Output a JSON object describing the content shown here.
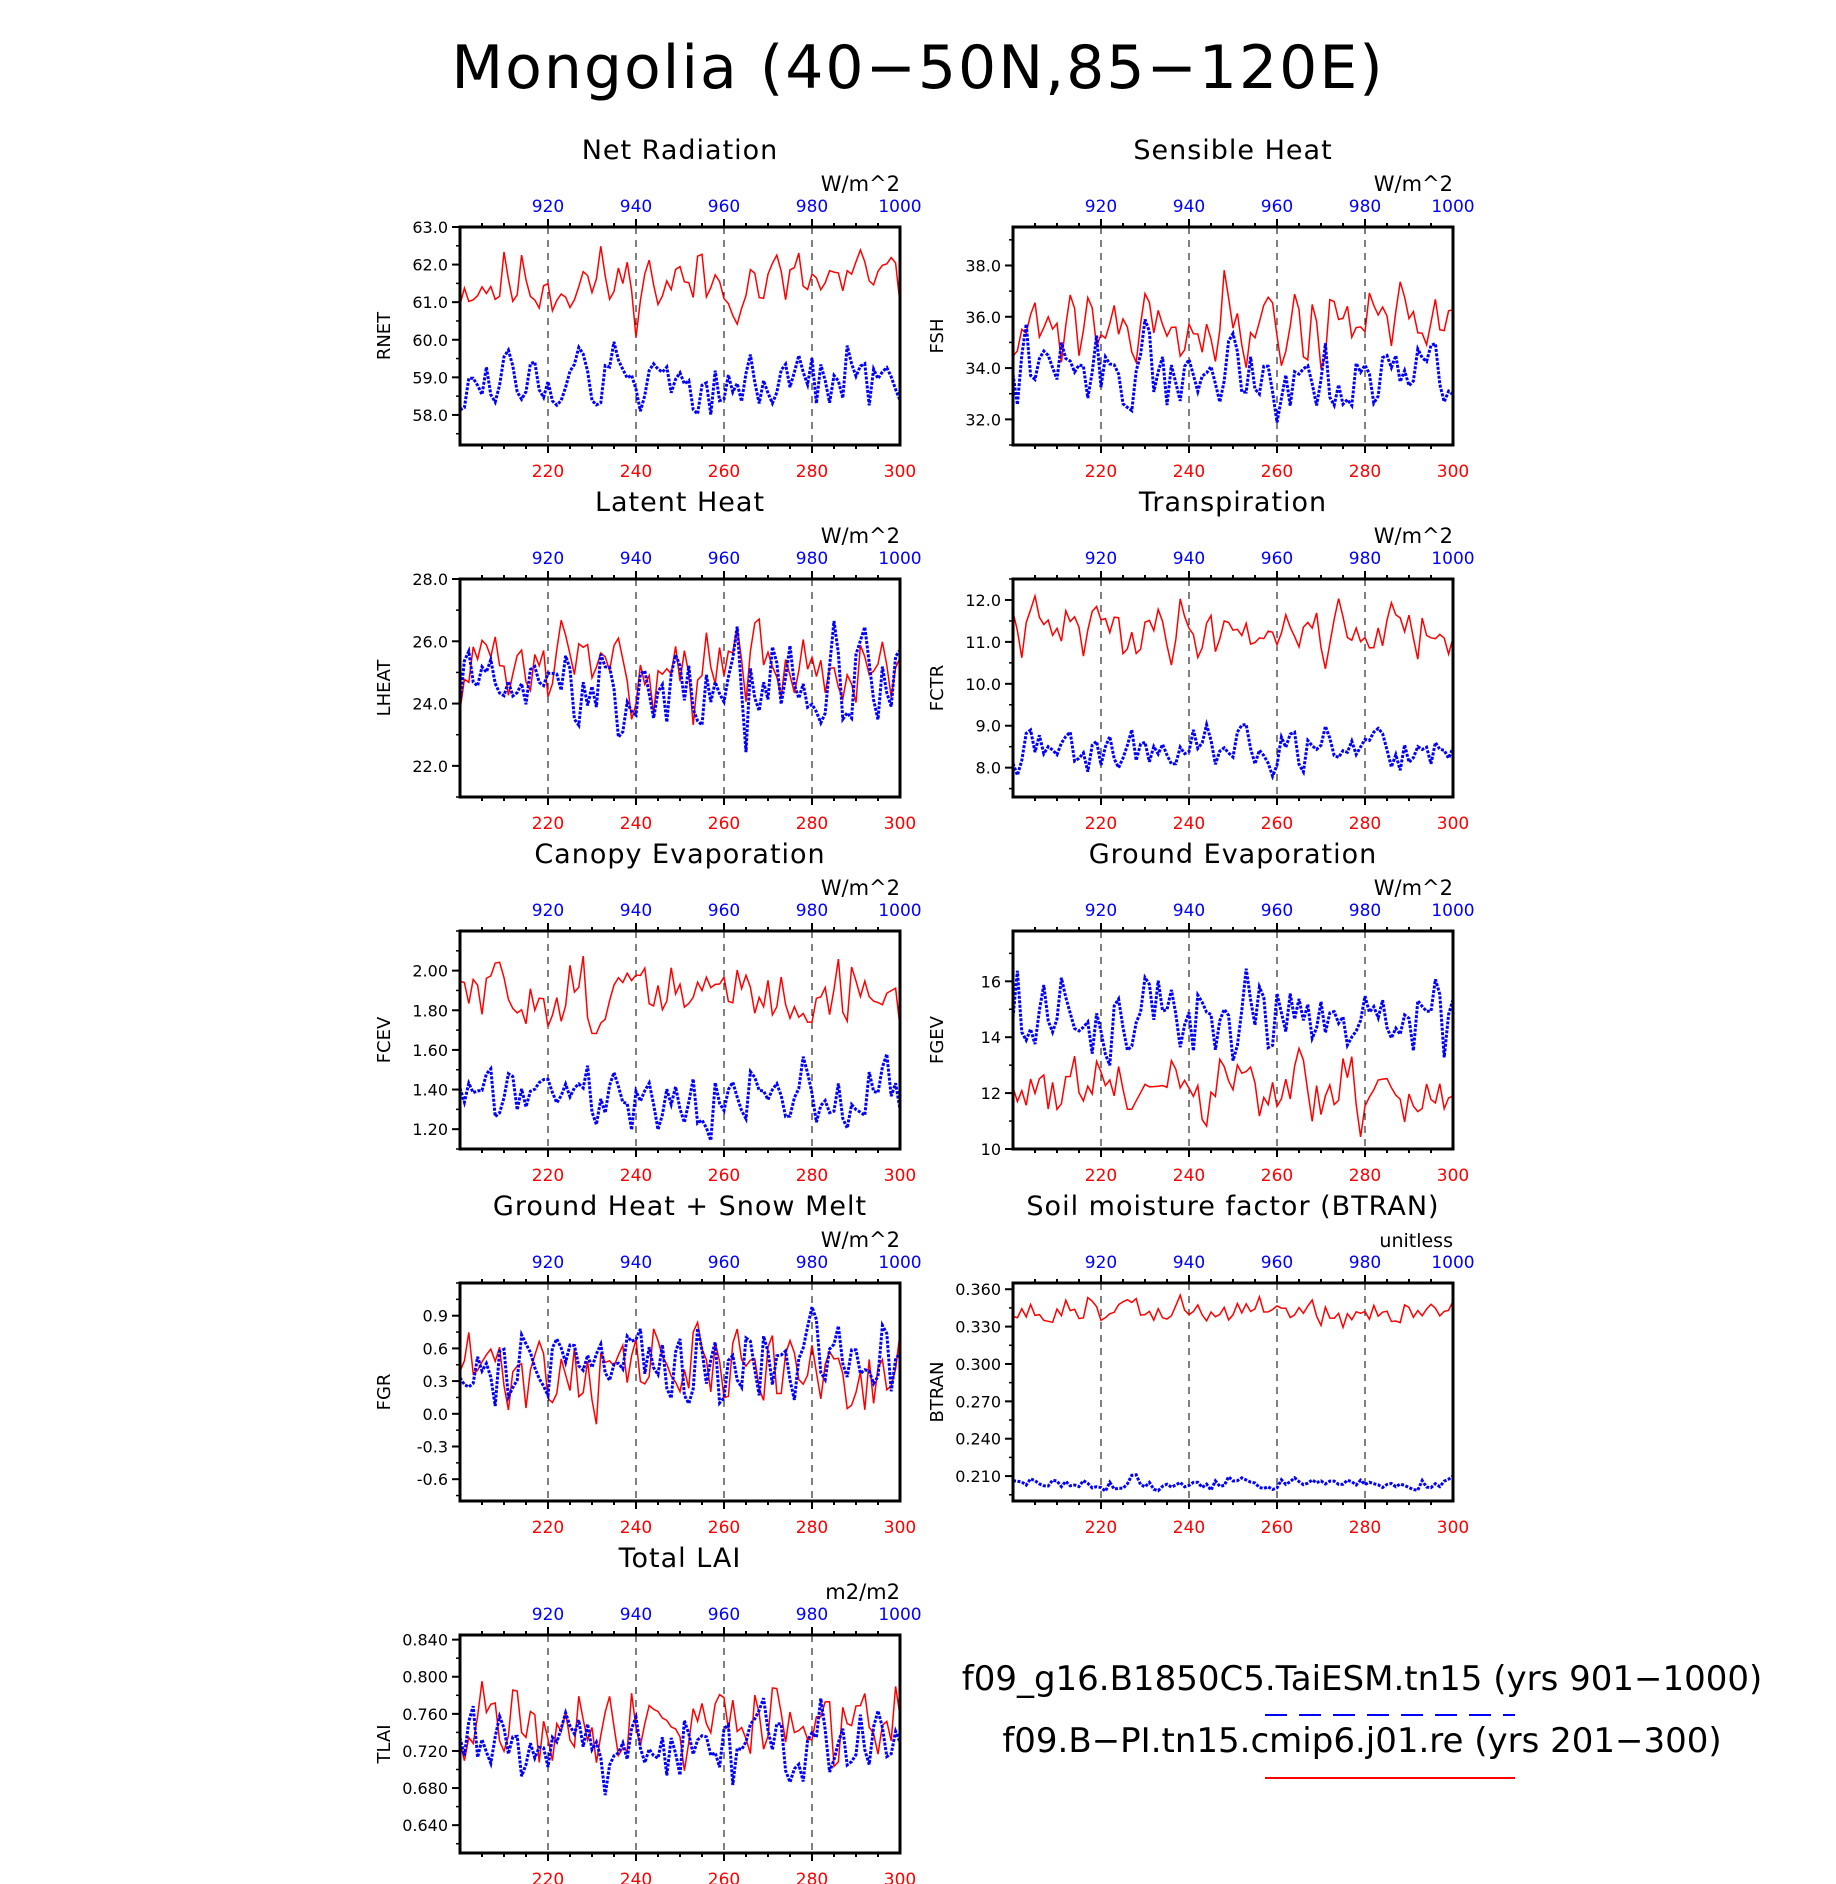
{
  "figure": {
    "title": "Mongolia (40−50N,85−120E)",
    "bottom_axis": {
      "ticks": [
        220,
        240,
        260,
        280,
        300
      ],
      "range": [
        200,
        300
      ],
      "color": "#ff0000"
    },
    "top_axis": {
      "ticks": [
        920,
        940,
        960,
        980,
        1000
      ],
      "range": [
        900,
        1000
      ],
      "color": "#0000ff"
    },
    "legend": {
      "entries": [
        {
          "label": "f09_g16.B1850C5.TaiESM.tn15 (yrs 901−1000)",
          "color": "#0000ff",
          "style": "dashed"
        },
        {
          "label": "f09.B−PI.tn15.cmip6.j01.re (yrs 201−300)",
          "color": "#ff0000",
          "style": "solid"
        }
      ]
    }
  },
  "chart_data": [
    {
      "type": "line",
      "title": "Net Radiation",
      "ylabel": "RNET",
      "units": "W/m^2",
      "ylim": [
        57.2,
        63.0
      ],
      "yticks": [
        "58.0",
        "59.0",
        "60.0",
        "61.0",
        "62.0",
        "63.0"
      ],
      "series": [
        {
          "color": "#ff0000",
          "style": "solid",
          "mean": 61.5,
          "amp": 0.7,
          "seed": 11
        },
        {
          "color": "#0000ff",
          "style": "dashed",
          "mean": 58.9,
          "amp": 0.7,
          "seed": 12
        }
      ]
    },
    {
      "type": "line",
      "title": "Sensible Heat",
      "ylabel": "FSH",
      "units": "W/m^2",
      "ylim": [
        31.0,
        39.5
      ],
      "yticks": [
        "32.0",
        "34.0",
        "36.0",
        "38.0"
      ],
      "series": [
        {
          "color": "#ff0000",
          "style": "solid",
          "mean": 35.8,
          "amp": 1.2,
          "seed": 21
        },
        {
          "color": "#0000ff",
          "style": "dashed",
          "mean": 33.9,
          "amp": 1.1,
          "seed": 22
        }
      ]
    },
    {
      "type": "line",
      "title": "Latent Heat",
      "ylabel": "LHEAT",
      "units": "W/m^2",
      "ylim": [
        21.0,
        28.0
      ],
      "yticks": [
        "22.0",
        "24.0",
        "26.0",
        "28.0"
      ],
      "series": [
        {
          "color": "#ff0000",
          "style": "solid",
          "mean": 25.2,
          "amp": 1.0,
          "seed": 31
        },
        {
          "color": "#0000ff",
          "style": "dashed",
          "mean": 24.6,
          "amp": 1.3,
          "seed": 32
        }
      ]
    },
    {
      "type": "line",
      "title": "Transpiration",
      "ylabel": "FCTR",
      "units": "W/m^2",
      "ylim": [
        7.3,
        12.5
      ],
      "yticks": [
        "8.0",
        "9.0",
        "10.0",
        "11.0",
        "12.0"
      ],
      "series": [
        {
          "color": "#ff0000",
          "style": "solid",
          "mean": 11.3,
          "amp": 0.5,
          "seed": 41
        },
        {
          "color": "#0000ff",
          "style": "dashed",
          "mean": 8.4,
          "amp": 0.4,
          "seed": 42
        }
      ]
    },
    {
      "type": "line",
      "title": "Canopy Evaporation",
      "ylabel": "FCEV",
      "units": "W/m^2",
      "ylim": [
        1.1,
        2.2
      ],
      "yticks": [
        "1.20",
        "1.40",
        "1.60",
        "1.80",
        "2.00"
      ],
      "series": [
        {
          "color": "#ff0000",
          "style": "solid",
          "mean": 1.88,
          "amp": 0.13,
          "seed": 51
        },
        {
          "color": "#0000ff",
          "style": "dashed",
          "mean": 1.38,
          "amp": 0.12,
          "seed": 52
        }
      ]
    },
    {
      "type": "line",
      "title": "Ground Evaporation",
      "ylabel": "FGEV",
      "units": "W/m^2",
      "ylim": [
        10,
        17.8
      ],
      "yticks": [
        "10",
        "12",
        "14",
        "16"
      ],
      "series": [
        {
          "color": "#ff0000",
          "style": "solid",
          "mean": 12.0,
          "amp": 1.0,
          "seed": 61
        },
        {
          "color": "#0000ff",
          "style": "dashed",
          "mean": 14.8,
          "amp": 1.1,
          "seed": 62
        }
      ]
    },
    {
      "type": "line",
      "title": "Ground Heat + Snow Melt",
      "ylabel": "FGR",
      "units": "W/m^2",
      "ylim": [
        -0.8,
        1.2
      ],
      "yticks": [
        "-0.6",
        "-0.3",
        "0.0",
        "0.3",
        "0.6",
        "0.9"
      ],
      "series": [
        {
          "color": "#ff0000",
          "style": "solid",
          "mean": 0.42,
          "amp": 0.3,
          "seed": 71
        },
        {
          "color": "#0000ff",
          "style": "dashed",
          "mean": 0.45,
          "amp": 0.3,
          "seed": 72
        }
      ]
    },
    {
      "type": "line",
      "title": "Soil moisture factor (BTRAN)",
      "ylabel": "BTRAN",
      "units": "unitless",
      "ylim": [
        0.19,
        0.365
      ],
      "yticks": [
        "0.210",
        "0.240",
        "0.270",
        "0.300",
        "0.330",
        "0.360"
      ],
      "series": [
        {
          "color": "#ff0000",
          "style": "solid",
          "mean": 0.342,
          "amp": 0.009,
          "seed": 81
        },
        {
          "color": "#0000ff",
          "style": "dashed",
          "mean": 0.204,
          "amp": 0.004,
          "seed": 82
        }
      ]
    },
    {
      "type": "line",
      "title": "Total LAI",
      "ylabel": "TLAI",
      "units": "m2/m2",
      "ylim": [
        0.61,
        0.845
      ],
      "yticks": [
        "0.640",
        "0.680",
        "0.720",
        "0.760",
        "0.800",
        "0.840"
      ],
      "series": [
        {
          "color": "#ff0000",
          "style": "solid",
          "mean": 0.755,
          "amp": 0.035,
          "seed": 91
        },
        {
          "color": "#0000ff",
          "style": "dashed",
          "mean": 0.725,
          "amp": 0.035,
          "seed": 92
        }
      ]
    }
  ]
}
